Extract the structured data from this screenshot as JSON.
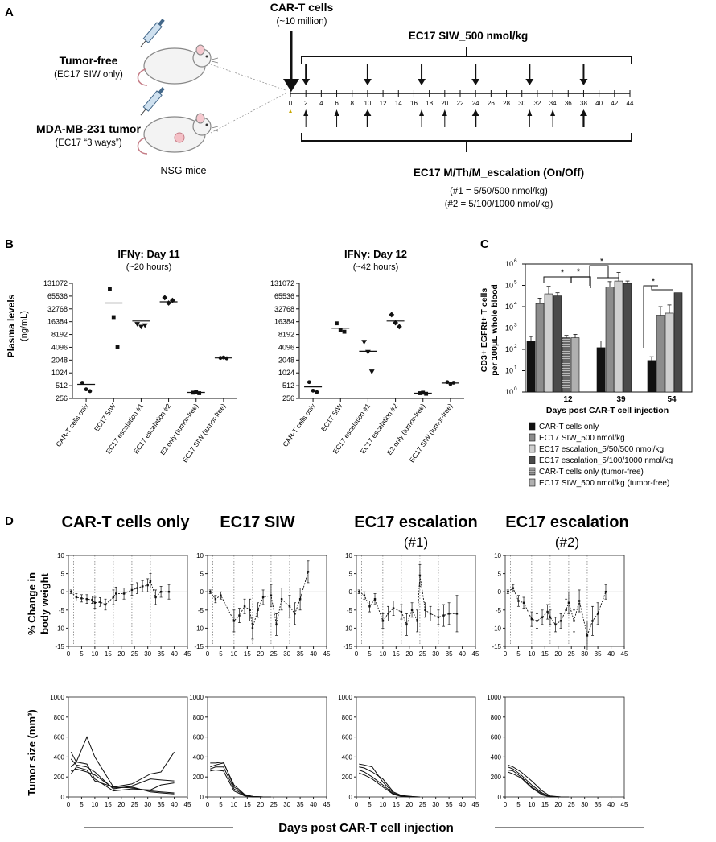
{
  "panel_a": {
    "letter": "A",
    "car_t_title": "CAR-T cells",
    "car_t_dose": "(~10 million)",
    "siw_regimen": "EC17 SIW_500 nmol/kg",
    "tumor_free_label": "Tumor-free",
    "tumor_free_sub": "(EC17 SIW only)",
    "tumor_label": "MDA-MB-231 tumor",
    "tumor_sub": "(EC17 “3 ways”)",
    "nsg_label": "NSG mice",
    "escalation_title": "EC17 M/Th/M_escalation (On/Off)",
    "escalation_1": "(#1 = 5/50/500 nmol/kg)",
    "escalation_2": "(#2 = 5/100/1000 nmol/kg)",
    "timeline_ticks": [
      "0",
      "2",
      "4",
      "6",
      "8",
      "10",
      "12",
      "14",
      "16",
      "18",
      "20",
      "22",
      "24",
      "26",
      "28",
      "30",
      "32",
      "34",
      "36",
      "38",
      "40",
      "42",
      "44"
    ],
    "siw_arrow_days": [
      2,
      10,
      17,
      24,
      31,
      38
    ],
    "escalation_arrow_days": [
      2,
      6,
      10,
      17,
      20,
      24,
      31,
      34,
      38
    ],
    "escalation_bold_days": [
      10,
      24,
      38
    ]
  },
  "panel_b": {
    "letter": "B",
    "ylabel": "Plasma levels",
    "yunit": "(ng/mL)",
    "yticks": [
      "131072",
      "65536",
      "32768",
      "16384",
      "8192",
      "4096",
      "2048",
      "1024",
      "512",
      "256"
    ],
    "categories": [
      "CAR-T cells only",
      "EC17 SIW",
      "EC17 escalation #1",
      "EC17 escalation #2",
      "E2 only (tumor-free)",
      "EC17 SIW (tumor-free)"
    ]
  },
  "panel_c": {
    "letter": "C",
    "ylabel_1": "CD3+ EGFRt+ T cells",
    "ylabel_2": "per 100μL whole blood",
    "xlabel": "Days post CAR-T cell injection",
    "star": "*",
    "legend": [
      {
        "label": "CAR-T cells only",
        "color": "#111111"
      },
      {
        "label": "EC17 SIW_500 nmol/kg",
        "color": "#8c8c8c"
      },
      {
        "label": "EC17 escalation_5/50/500 nmol/kg",
        "color": "#cfcfcf"
      },
      {
        "label": "EC17 escalation_5/100/1000 nmol/kg",
        "color": "#4a4a4a"
      },
      {
        "label": "CAR-T cells only (tumor-free)",
        "color": "#777777"
      },
      {
        "label": "EC17 SIW_500 nmol/kg (tumor-free)",
        "color": "#b0b0b0"
      }
    ]
  },
  "panel_d": {
    "letter": "D",
    "group_titles": [
      "CAR-T cells only",
      "EC17 SIW",
      "EC17 escalation",
      "EC17 escalation"
    ],
    "group_subtitles": [
      "",
      "",
      "(#1)",
      "(#2)"
    ],
    "ylabel_weight_1": "% Change in",
    "ylabel_weight_2": "body weight",
    "ylabel_tumor": "Tumor size (mm³)",
    "xlabel": "Days post CAR-T cell injection",
    "weight_yticks": [
      "10",
      "5",
      "0",
      "-5",
      "-10",
      "-15"
    ],
    "tumor_yticks": [
      "1000",
      "800",
      "600",
      "400",
      "200",
      "0"
    ],
    "xticks": [
      "0",
      "5",
      "10",
      "15",
      "20",
      "25",
      "30",
      "35",
      "40",
      "45"
    ]
  },
  "chart_data": [
    {
      "type": "scatter",
      "title": "IFNγ: Day 11",
      "subtitle": "(~20 hours)",
      "ylabel": "Plasma levels (ng/mL)",
      "yscale": "log2",
      "ylim": [
        256,
        131072
      ],
      "categories": [
        "CAR-T cells only",
        "EC17 SIW",
        "EC17 escalation #1",
        "EC17 escalation #2",
        "E2 only (tumor-free)",
        "EC17 SIW (tumor-free)"
      ],
      "markers": [
        "circle",
        "square",
        "triangle-down",
        "diamond",
        "square",
        "circle"
      ],
      "points": [
        [
          600,
          420,
          380
        ],
        [
          98000,
          21000,
          4200
        ],
        [
          14500,
          12500,
          13500
        ],
        [
          60000,
          45000,
          52000
        ],
        [
          350,
          360,
          340
        ],
        [
          2300,
          2350,
          2250
        ]
      ],
      "means": [
        550,
        45000,
        17000,
        48000,
        355,
        2300
      ]
    },
    {
      "type": "scatter",
      "title": "IFNγ: Day 12",
      "subtitle": "(~42 hours)",
      "ylabel": "Plasma levels (ng/mL)",
      "yscale": "log2",
      "ylim": [
        256,
        131072
      ],
      "categories": [
        "CAR-T cells only",
        "EC17 SIW",
        "EC17 escalation #1",
        "EC17 escalation #2",
        "E2 only (tumor-free)",
        "EC17 SIW (tumor-free)"
      ],
      "markers": [
        "circle",
        "square",
        "triangle-down",
        "diamond",
        "square",
        "circle"
      ],
      "points": [
        [
          620,
          390,
          360
        ],
        [
          15000,
          10500,
          9500
        ],
        [
          5500,
          3200,
          1100
        ],
        [
          24000,
          15500,
          12500
        ],
        [
          340,
          350,
          330
        ],
        [
          620,
          560,
          600
        ]
      ],
      "means": [
        480,
        11500,
        3300,
        17000,
        340,
        590
      ]
    },
    {
      "type": "bar",
      "title": "",
      "xlabel": "Days post CAR-T cell injection",
      "ylabel": "CD3+ EGFRt+ T cells per 100μL whole blood",
      "yscale": "log10",
      "ylim": [
        1,
        1000000
      ],
      "categories": [
        "12",
        "39",
        "54"
      ],
      "series": [
        {
          "name": "CAR-T cells only",
          "values": [
            250,
            120,
            30
          ],
          "errors": [
            400,
            250,
            45
          ]
        },
        {
          "name": "EC17 SIW_500 nmol/kg",
          "values": [
            14000,
            85000,
            4000
          ],
          "errors": [
            25000,
            150000,
            10000
          ]
        },
        {
          "name": "EC17 escalation_5/50/500 nmol/kg",
          "values": [
            40000,
            160000,
            5000
          ],
          "errors": [
            90000,
            400000,
            12000
          ]
        },
        {
          "name": "EC17 escalation_5/100/1000 nmol/kg",
          "values": [
            32000,
            120000,
            45000
          ],
          "errors": [
            45000,
            160000,
            null
          ]
        },
        {
          "name": "CAR-T cells only (tumor-free)",
          "values": [
            350,
            null,
            null
          ],
          "errors": [
            450,
            null,
            null
          ]
        },
        {
          "name": "EC17 SIW_500 nmol/kg (tumor-free)",
          "values": [
            350,
            null,
            null
          ],
          "errors": [
            500,
            null,
            null
          ]
        }
      ],
      "annotations": [
        "*",
        "*",
        "*",
        "*"
      ]
    },
    {
      "type": "line",
      "title": "CAR-T cells only",
      "ylabel": "% Change in body weight",
      "xlim": [
        0,
        45
      ],
      "ylim": [
        -15,
        10
      ],
      "dashed_vlines": [
        2,
        10,
        17,
        24,
        31
      ],
      "x": [
        1,
        3,
        5,
        7,
        9,
        10,
        12,
        14,
        17,
        18,
        21,
        24,
        26,
        28,
        30,
        31,
        33,
        35,
        38
      ],
      "y": [
        0,
        -1.5,
        -1.8,
        -2,
        -2.2,
        -3,
        -2.8,
        -3.5,
        -1.5,
        -0.5,
        -0.5,
        0.5,
        1,
        1.5,
        1.8,
        3,
        -1.5,
        0,
        0
      ],
      "err": [
        0.5,
        1,
        1,
        1.2,
        1,
        1.5,
        1.2,
        1.5,
        2,
        1.8,
        1.5,
        1.5,
        1.5,
        1.5,
        1.8,
        2,
        2,
        1.5,
        2
      ]
    },
    {
      "type": "line",
      "title": "EC17 SIW",
      "ylabel": "% Change in body weight",
      "xlim": [
        0,
        45
      ],
      "ylim": [
        -15,
        10
      ],
      "dashed_vlines": [
        2,
        10,
        17,
        24,
        31
      ],
      "x": [
        1,
        3,
        5,
        10,
        12,
        14,
        16,
        17,
        19,
        21,
        24,
        26,
        28,
        31,
        33,
        35,
        38
      ],
      "y": [
        0,
        -2,
        -1,
        -8,
        -6.5,
        -4,
        -5,
        -10,
        -5,
        -1.5,
        -1,
        -9,
        -2,
        -4,
        -6,
        -2,
        5.5
      ],
      "err": [
        0.5,
        1,
        1,
        3,
        2,
        2,
        3,
        3,
        2,
        2,
        3,
        3,
        3,
        3,
        3,
        3,
        3
      ]
    },
    {
      "type": "line",
      "title": "EC17 escalation (#1)",
      "ylabel": "% Change in body weight",
      "xlim": [
        0,
        45
      ],
      "ylim": [
        -15,
        10
      ],
      "dashed_vlines": [
        2,
        10,
        17,
        24,
        31
      ],
      "x": [
        1,
        3,
        5,
        7,
        10,
        12,
        14,
        17,
        19,
        21,
        23,
        24,
        26,
        28,
        31,
        33,
        35,
        38
      ],
      "y": [
        0,
        -1,
        -4,
        -2,
        -8,
        -6,
        -4.5,
        -5.5,
        -9,
        -5,
        -8,
        4.5,
        -5,
        -6,
        -7,
        -6.5,
        -6,
        -6
      ],
      "err": [
        0.5,
        1,
        1.5,
        1.5,
        2,
        2,
        2,
        2,
        3,
        2,
        3,
        3,
        2,
        2,
        2,
        3,
        3,
        5
      ]
    },
    {
      "type": "line",
      "title": "EC17 escalation (#2)",
      "ylabel": "% Change in body weight",
      "xlim": [
        0,
        45
      ],
      "ylim": [
        -15,
        10
      ],
      "dashed_vlines": [
        2,
        10,
        17,
        24,
        31
      ],
      "x": [
        1,
        3,
        5,
        7,
        10,
        12,
        14,
        16,
        17,
        19,
        21,
        23,
        24,
        26,
        28,
        31,
        33,
        35,
        38
      ],
      "y": [
        0,
        1,
        -2.5,
        -3,
        -7.5,
        -8,
        -7,
        -5.5,
        -7,
        -9,
        -8,
        -5,
        -3,
        -8,
        -2.5,
        -12,
        -8,
        -6,
        0
      ],
      "err": [
        0.5,
        1,
        1.5,
        1.5,
        2,
        2,
        2,
        2,
        2,
        2,
        2,
        3,
        3,
        3,
        3,
        4,
        4,
        3,
        2
      ]
    },
    {
      "type": "line",
      "title": "CAR-T cells only",
      "ylabel": "Tumor size (mm³)",
      "xlabel": "Days post CAR-T cell injection",
      "xlim": [
        0,
        45
      ],
      "ylim": [
        0,
        1000
      ],
      "series": [
        {
          "x": [
            1,
            3,
            7,
            10,
            17,
            24,
            31,
            35,
            40
          ],
          "y": [
            450,
            350,
            600,
            400,
            100,
            130,
            230,
            250,
            450
          ]
        },
        {
          "x": [
            1,
            3,
            7,
            10,
            17,
            24,
            31,
            35,
            40
          ],
          "y": [
            380,
            320,
            300,
            250,
            80,
            110,
            180,
            170,
            160
          ]
        },
        {
          "x": [
            1,
            3,
            7,
            10,
            17,
            24,
            31,
            35,
            40
          ],
          "y": [
            300,
            350,
            330,
            180,
            60,
            80,
            70,
            120,
            140
          ]
        },
        {
          "x": [
            1,
            3,
            7,
            10,
            17,
            24,
            31,
            35,
            40
          ],
          "y": [
            260,
            280,
            250,
            220,
            90,
            100,
            50,
            40,
            30
          ]
        },
        {
          "x": [
            1,
            3,
            7,
            10,
            17,
            24,
            31,
            35,
            40
          ],
          "y": [
            230,
            300,
            270,
            160,
            100,
            90,
            60,
            50,
            40
          ]
        }
      ]
    },
    {
      "type": "line",
      "title": "EC17 SIW",
      "ylabel": "Tumor size (mm³)",
      "xlim": [
        0,
        45
      ],
      "ylim": [
        0,
        1000
      ],
      "series": [
        {
          "x": [
            1,
            3,
            6,
            10,
            14,
            17,
            21,
            24
          ],
          "y": [
            340,
            340,
            350,
            100,
            20,
            5,
            0,
            0
          ]
        },
        {
          "x": [
            1,
            3,
            6,
            10,
            14,
            17,
            21,
            24
          ],
          "y": [
            300,
            320,
            340,
            120,
            25,
            5,
            0,
            0
          ]
        },
        {
          "x": [
            1,
            3,
            6,
            10,
            14,
            17,
            21,
            24
          ],
          "y": [
            280,
            300,
            300,
            80,
            15,
            5,
            0,
            0
          ]
        },
        {
          "x": [
            1,
            3,
            6,
            10,
            14,
            17,
            21,
            24
          ],
          "y": [
            260,
            270,
            260,
            60,
            10,
            0,
            0,
            0
          ]
        }
      ]
    },
    {
      "type": "line",
      "title": "EC17 escalation (#1)",
      "ylabel": "Tumor size (mm³)",
      "xlim": [
        0,
        45
      ],
      "ylim": [
        0,
        1000
      ],
      "series": [
        {
          "x": [
            1,
            3,
            6,
            10,
            14,
            17,
            21,
            24
          ],
          "y": [
            330,
            320,
            300,
            150,
            40,
            10,
            0,
            0
          ]
        },
        {
          "x": [
            1,
            3,
            6,
            10,
            14,
            17,
            21,
            24
          ],
          "y": [
            300,
            290,
            250,
            180,
            50,
            15,
            5,
            0
          ]
        },
        {
          "x": [
            1,
            3,
            6,
            10,
            14,
            17,
            21,
            24
          ],
          "y": [
            270,
            250,
            200,
            120,
            30,
            10,
            0,
            0
          ]
        },
        {
          "x": [
            1,
            3,
            6,
            10,
            14,
            17,
            21,
            24
          ],
          "y": [
            240,
            220,
            180,
            100,
            25,
            5,
            0,
            0
          ]
        }
      ]
    },
    {
      "type": "line",
      "title": "EC17 escalation (#2)",
      "ylabel": "Tumor size (mm³)",
      "xlim": [
        0,
        45
      ],
      "ylim": [
        0,
        1000
      ],
      "series": [
        {
          "x": [
            1,
            3,
            6,
            10,
            14,
            17,
            21,
            24
          ],
          "y": [
            320,
            300,
            250,
            160,
            60,
            10,
            0,
            0
          ]
        },
        {
          "x": [
            1,
            3,
            6,
            10,
            14,
            17,
            21,
            24
          ],
          "y": [
            300,
            280,
            220,
            120,
            40,
            5,
            0,
            0
          ]
        },
        {
          "x": [
            1,
            3,
            6,
            10,
            14,
            17,
            21,
            24
          ],
          "y": [
            270,
            260,
            200,
            100,
            30,
            5,
            0,
            0
          ]
        },
        {
          "x": [
            1,
            3,
            6,
            10,
            14,
            17,
            21,
            24
          ],
          "y": [
            250,
            230,
            190,
            90,
            20,
            0,
            0,
            0
          ]
        }
      ]
    }
  ]
}
